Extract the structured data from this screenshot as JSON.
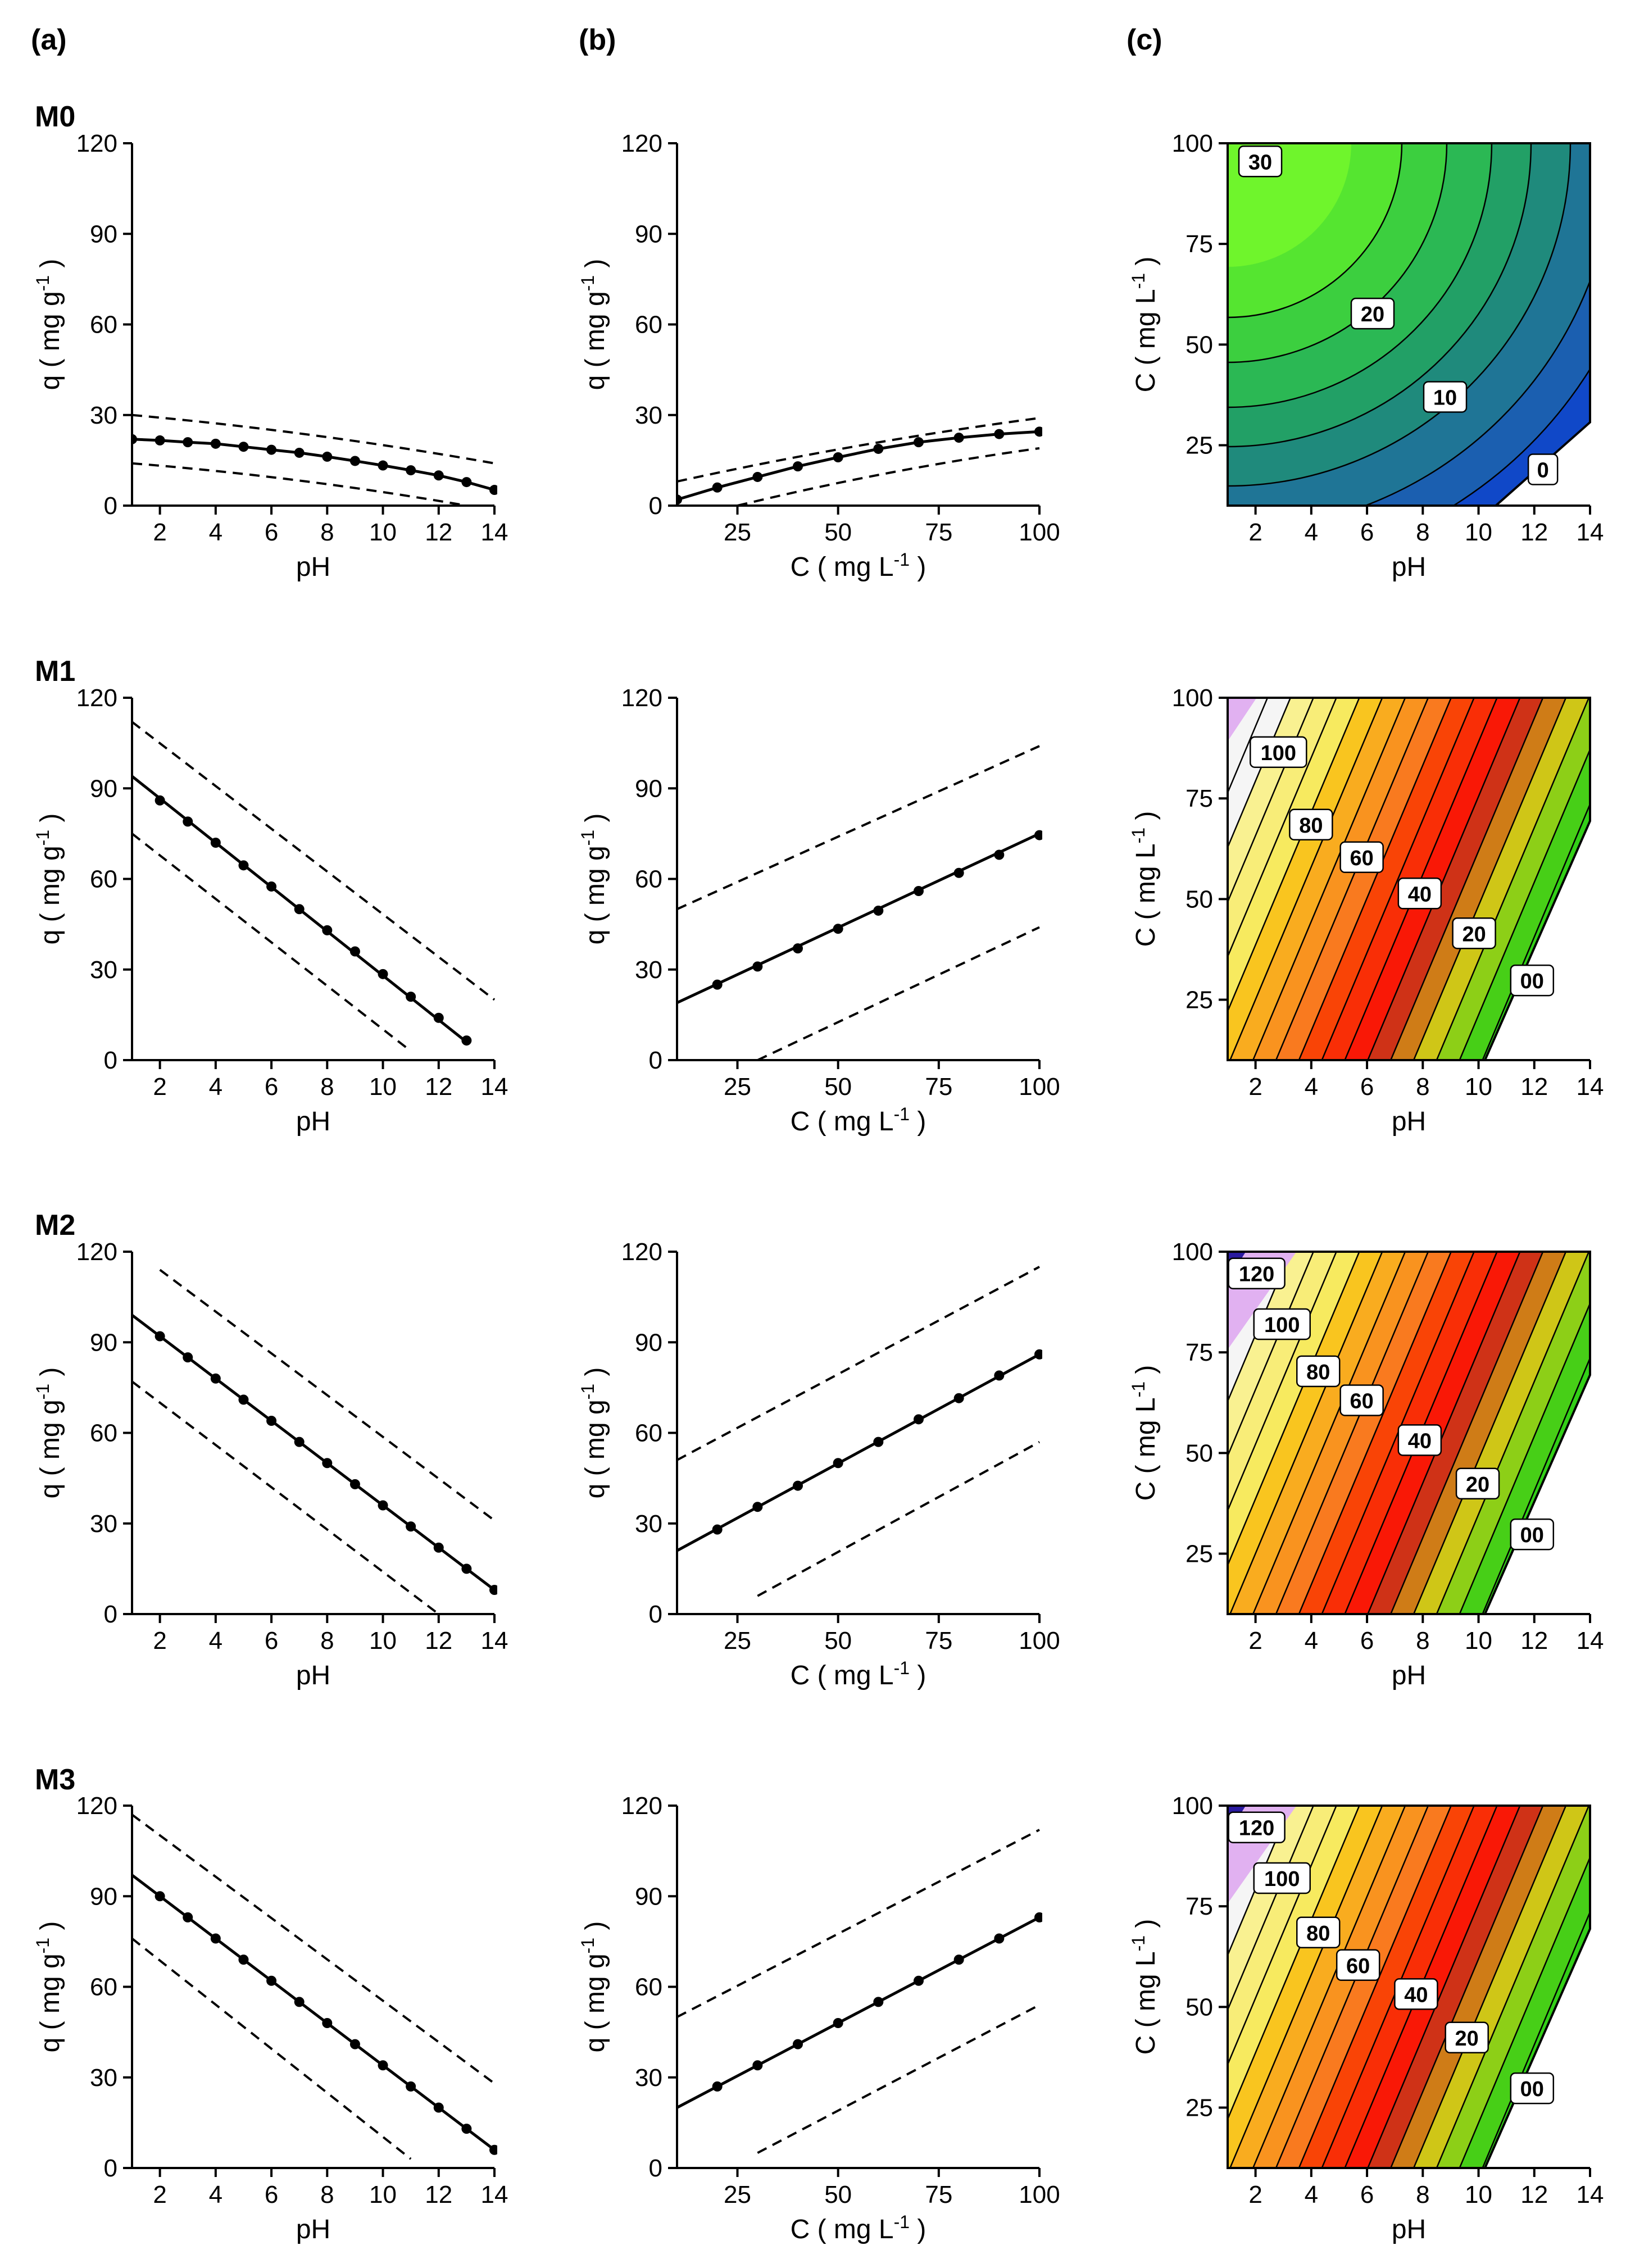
{
  "panel_letters": [
    "(a)",
    "(b)",
    "(c)"
  ],
  "row_labels": [
    "M0",
    "M1",
    "M2",
    "M3"
  ],
  "chart_data": [
    {
      "type": "line",
      "panel": "M0-a",
      "xlabel": "pH",
      "ylabel": "q ( mg g-1 )",
      "ylabel_parts": [
        "q ( mg g",
        "-1",
        " )"
      ],
      "xlim": [
        1,
        14
      ],
      "ylim": [
        0,
        120
      ],
      "xticks": [
        2,
        4,
        6,
        8,
        10,
        12,
        14
      ],
      "yticks": [
        0,
        30,
        60,
        90,
        120
      ],
      "fit": {
        "x": [
          1,
          14
        ],
        "y": [
          22,
          5
        ]
      },
      "upper": {
        "x": [
          1,
          14
        ],
        "y": [
          30,
          14
        ]
      },
      "lower": {
        "x": [
          1,
          13
        ],
        "y": [
          14,
          0
        ]
      },
      "points": {
        "x": [
          1,
          2,
          3,
          4,
          5,
          6,
          7,
          8,
          9,
          10,
          11,
          12,
          13,
          14
        ],
        "y": [
          22,
          21.6,
          21,
          20.5,
          19.5,
          18.5,
          17.5,
          16.2,
          14.8,
          13.3,
          11.7,
          10,
          7.8,
          5.2
        ]
      },
      "curve": true
    },
    {
      "type": "line",
      "panel": "M0-b",
      "xlabel": "C ( mg L-1 )",
      "xlabel_parts": [
        "C ( mg L",
        "-1",
        " )"
      ],
      "ylabel": "q ( mg g-1 )",
      "ylabel_parts": [
        "q ( mg g",
        "-1",
        " )"
      ],
      "xlim": [
        10,
        100
      ],
      "ylim": [
        0,
        120
      ],
      "xticks": [
        25,
        50,
        75,
        100
      ],
      "yticks": [
        0,
        30,
        60,
        90,
        120
      ],
      "fit": {
        "x": [
          10,
          100
        ],
        "y": [
          2,
          24
        ]
      },
      "upper": {
        "x": [
          10,
          100
        ],
        "y": [
          8,
          29
        ]
      },
      "lower": {
        "x": [
          25,
          100
        ],
        "y": [
          0,
          19
        ]
      },
      "points": {
        "x": [
          10,
          20,
          30,
          40,
          50,
          60,
          70,
          80,
          90,
          100
        ],
        "y": [
          2,
          6,
          9.5,
          13,
          16,
          18.8,
          21,
          22.5,
          23.7,
          24.5
        ]
      },
      "curve": true
    },
    {
      "type": "contour",
      "panel": "M0-c",
      "xlabel": "pH",
      "ylabel": "C ( mg L-1 )",
      "ylabel_parts": [
        "C ( mg L",
        "-1",
        " )"
      ],
      "xlim": [
        1,
        14
      ],
      "ylim": [
        10,
        100
      ],
      "xticks": [
        2,
        4,
        6,
        8,
        10,
        12,
        14
      ],
      "yticks": [
        25,
        50,
        75,
        100
      ],
      "levels": [
        "0",
        "10",
        "20",
        "30"
      ]
    },
    {
      "type": "line",
      "panel": "M1-a",
      "xlabel": "pH",
      "ylabel": "q ( mg g-1 )",
      "ylabel_parts": [
        "q ( mg g",
        "-1",
        " )"
      ],
      "xlim": [
        1,
        14
      ],
      "ylim": [
        0,
        120
      ],
      "xticks": [
        2,
        4,
        6,
        8,
        10,
        12,
        14
      ],
      "yticks": [
        0,
        30,
        60,
        90,
        120
      ],
      "fit": {
        "x": [
          1,
          13
        ],
        "y": [
          94,
          6
        ]
      },
      "upper": {
        "x": [
          1,
          14
        ],
        "y": [
          112,
          20
        ]
      },
      "lower": {
        "x": [
          1,
          11
        ],
        "y": [
          75,
          3
        ]
      },
      "points": {
        "x": [
          2,
          3,
          4,
          5,
          6,
          7,
          8,
          9,
          10,
          11,
          12,
          13
        ],
        "y": [
          86,
          79,
          72,
          64.5,
          57.5,
          50,
          43,
          36,
          28.5,
          21,
          14,
          6.5
        ]
      }
    },
    {
      "type": "line",
      "panel": "M1-b",
      "xlabel": "C ( mg L-1 )",
      "xlabel_parts": [
        "C ( mg L",
        "-1",
        " )"
      ],
      "ylabel": "q ( mg g-1 )",
      "ylabel_parts": [
        "q ( mg g",
        "-1",
        " )"
      ],
      "xlim": [
        10,
        100
      ],
      "ylim": [
        0,
        120
      ],
      "xticks": [
        25,
        50,
        75,
        100
      ],
      "yticks": [
        0,
        30,
        60,
        90,
        120
      ],
      "fit": {
        "x": [
          10,
          100
        ],
        "y": [
          19,
          75
        ]
      },
      "upper": {
        "x": [
          10,
          100
        ],
        "y": [
          50,
          104
        ]
      },
      "lower": {
        "x": [
          30,
          100
        ],
        "y": [
          0,
          44
        ]
      },
      "points": {
        "x": [
          20,
          30,
          40,
          50,
          60,
          70,
          80,
          90,
          100
        ],
        "y": [
          25,
          31,
          37,
          43.5,
          49.5,
          56,
          62,
          68,
          74.5
        ]
      }
    },
    {
      "type": "contour",
      "panel": "M1-c",
      "xlabel": "pH",
      "ylabel": "C ( mg L-1 )",
      "ylabel_parts": [
        "C ( mg L",
        "-1",
        " )"
      ],
      "xlim": [
        1,
        14
      ],
      "ylim": [
        10,
        100
      ],
      "xticks": [
        2,
        4,
        6,
        8,
        10,
        12,
        14
      ],
      "yticks": [
        25,
        50,
        75,
        100
      ],
      "levels": [
        "00",
        "20",
        "40",
        "60",
        "80",
        "100"
      ]
    },
    {
      "type": "line",
      "panel": "M2-a",
      "xlabel": "pH",
      "ylabel": "q ( mg g-1 )",
      "ylabel_parts": [
        "q ( mg g",
        "-1",
        " )"
      ],
      "xlim": [
        1,
        14
      ],
      "ylim": [
        0,
        120
      ],
      "xticks": [
        2,
        4,
        6,
        8,
        10,
        12,
        14
      ],
      "yticks": [
        0,
        30,
        60,
        90,
        120
      ],
      "fit": {
        "x": [
          1,
          14
        ],
        "y": [
          99,
          8
        ]
      },
      "upper": {
        "x": [
          2,
          14
        ],
        "y": [
          114,
          31
        ]
      },
      "lower": {
        "x": [
          1,
          12
        ],
        "y": [
          77,
          0
        ]
      },
      "points": {
        "x": [
          2,
          3,
          4,
          5,
          6,
          7,
          8,
          9,
          10,
          11,
          12,
          13,
          14
        ],
        "y": [
          92,
          85,
          78,
          71,
          64,
          57,
          50,
          43,
          36,
          29,
          22,
          15,
          8
        ]
      }
    },
    {
      "type": "line",
      "panel": "M2-b",
      "xlabel": "C ( mg L-1 )",
      "xlabel_parts": [
        "C ( mg L",
        "-1",
        " )"
      ],
      "ylabel": "q ( mg g-1 )",
      "ylabel_parts": [
        "q ( mg g",
        "-1",
        " )"
      ],
      "xlim": [
        10,
        100
      ],
      "ylim": [
        0,
        120
      ],
      "xticks": [
        25,
        50,
        75,
        100
      ],
      "yticks": [
        0,
        30,
        60,
        90,
        120
      ],
      "fit": {
        "x": [
          10,
          100
        ],
        "y": [
          21,
          86
        ]
      },
      "upper": {
        "x": [
          10,
          100
        ],
        "y": [
          51,
          115
        ]
      },
      "lower": {
        "x": [
          30,
          100
        ],
        "y": [
          6,
          57
        ]
      },
      "points": {
        "x": [
          20,
          30,
          40,
          50,
          60,
          70,
          80,
          90,
          100
        ],
        "y": [
          28,
          35.5,
          42.5,
          50,
          57,
          64.5,
          71.5,
          79,
          86
        ]
      }
    },
    {
      "type": "contour",
      "panel": "M2-c",
      "xlabel": "pH",
      "ylabel": "C ( mg L-1 )",
      "ylabel_parts": [
        "C ( mg L",
        "-1",
        " )"
      ],
      "xlim": [
        1,
        14
      ],
      "ylim": [
        10,
        100
      ],
      "xticks": [
        2,
        4,
        6,
        8,
        10,
        12,
        14
      ],
      "yticks": [
        25,
        50,
        75,
        100
      ],
      "levels": [
        "00",
        "20",
        "40",
        "60",
        "80",
        "100",
        "120"
      ]
    },
    {
      "type": "line",
      "panel": "M3-a",
      "xlabel": "pH",
      "ylabel": "q ( mg g-1 )",
      "ylabel_parts": [
        "q ( mg g",
        "-1",
        " )"
      ],
      "xlim": [
        1,
        14
      ],
      "ylim": [
        0,
        120
      ],
      "xticks": [
        2,
        4,
        6,
        8,
        10,
        12,
        14
      ],
      "yticks": [
        0,
        30,
        60,
        90,
        120
      ],
      "fit": {
        "x": [
          1,
          14
        ],
        "y": [
          97,
          6
        ]
      },
      "upper": {
        "x": [
          1,
          14
        ],
        "y": [
          117,
          28
        ]
      },
      "lower": {
        "x": [
          1,
          11
        ],
        "y": [
          76,
          3
        ]
      },
      "points": {
        "x": [
          2,
          3,
          4,
          5,
          6,
          7,
          8,
          9,
          10,
          11,
          12,
          13,
          14
        ],
        "y": [
          90,
          83,
          76,
          69,
          62,
          55,
          48,
          41,
          34,
          27,
          20,
          13,
          6
        ]
      }
    },
    {
      "type": "line",
      "panel": "M3-b",
      "xlabel": "C ( mg L-1 )",
      "xlabel_parts": [
        "C ( mg L",
        "-1",
        " )"
      ],
      "ylabel": "q ( mg g-1 )",
      "ylabel_parts": [
        "q ( mg g",
        "-1",
        " )"
      ],
      "xlim": [
        10,
        100
      ],
      "ylim": [
        0,
        120
      ],
      "xticks": [
        25,
        50,
        75,
        100
      ],
      "yticks": [
        0,
        30,
        60,
        90,
        120
      ],
      "fit": {
        "x": [
          10,
          100
        ],
        "y": [
          20,
          83
        ]
      },
      "upper": {
        "x": [
          10,
          100
        ],
        "y": [
          50,
          112
        ]
      },
      "lower": {
        "x": [
          30,
          100
        ],
        "y": [
          5,
          54
        ]
      },
      "points": {
        "x": [
          20,
          30,
          40,
          50,
          60,
          70,
          80,
          90,
          100
        ],
        "y": [
          27,
          34,
          41,
          48,
          55,
          62,
          69,
          76,
          83
        ]
      }
    },
    {
      "type": "contour",
      "panel": "M3-c",
      "xlabel": "pH",
      "ylabel": "C ( mg L-1 )",
      "ylabel_parts": [
        "C ( mg L",
        "-1",
        " )"
      ],
      "xlim": [
        1,
        14
      ],
      "ylim": [
        10,
        100
      ],
      "xticks": [
        2,
        4,
        6,
        8,
        10,
        12,
        14
      ],
      "yticks": [
        25,
        50,
        75,
        100
      ],
      "levels": [
        "00",
        "20",
        "40",
        "60",
        "80",
        "100",
        "120"
      ]
    }
  ]
}
